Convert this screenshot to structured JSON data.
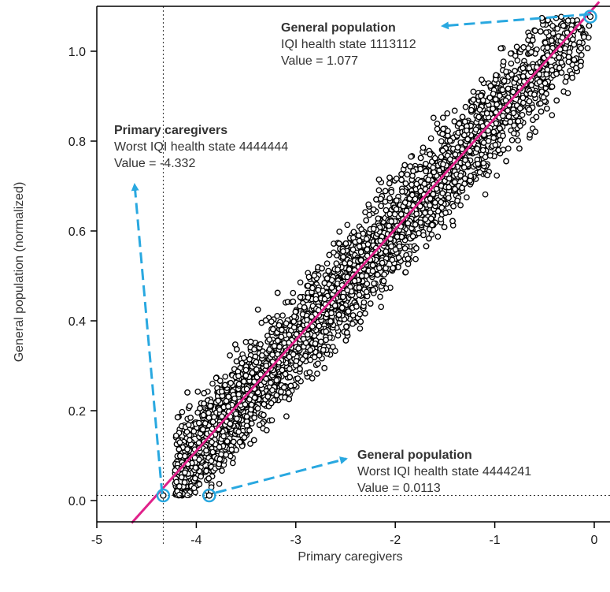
{
  "chart_data": {
    "type": "scatter",
    "title": "",
    "xlabel": "Primary caregivers",
    "ylabel": "General population (normalized)",
    "xlim": [
      -5,
      0.05
    ],
    "ylim": [
      -0.05,
      1.1
    ],
    "x_ticks": [
      -5,
      -4,
      -3,
      -2,
      -1,
      0
    ],
    "y_ticks": [
      0.0,
      0.2,
      0.4,
      0.6,
      0.8,
      1.0
    ],
    "x_tick_labels": [
      "-5",
      "-4",
      "-3",
      "-2",
      "-1",
      "0"
    ],
    "y_tick_labels": [
      "0.0",
      "0.2",
      "0.4",
      "0.6",
      "0.8",
      "1.0"
    ],
    "grid": false,
    "scatter_cloud": {
      "description_points": "dense cloud of health-state value pairs along the regression line",
      "x_range": [
        -4.3,
        -0.05
      ],
      "y_range": [
        0.0113,
        1.077
      ],
      "approx_count": 5000,
      "marker": "open circle",
      "color": "#000000"
    },
    "fit_line": {
      "color": "#e0218a",
      "x": [
        -4.65,
        0.05
      ],
      "y": [
        -0.05,
        1.11
      ]
    },
    "reference_lines": {
      "vertical_x": -4.332,
      "horizontal_y": 0.0113
    },
    "highlighted_points": [
      {
        "x": -0.04,
        "y": 1.077
      },
      {
        "x": -4.332,
        "y": 0.0113
      },
      {
        "x": -3.87,
        "y": 0.0113
      }
    ],
    "annotations": [
      {
        "title": "General population",
        "line1": "IQI health state 1113112",
        "line2": "Value = 1.077"
      },
      {
        "title": "Primary caregivers",
        "line1": "Worst IQI health state 4444444",
        "line2": "Value = -4.332"
      },
      {
        "title": "General population",
        "line1": "Worst IQI health state 4444241",
        "line2": "Value = 0.0113"
      }
    ],
    "colors": {
      "highlight": "#29a8e0",
      "arrow": "#29a8e0",
      "fit": "#e0218a"
    }
  }
}
